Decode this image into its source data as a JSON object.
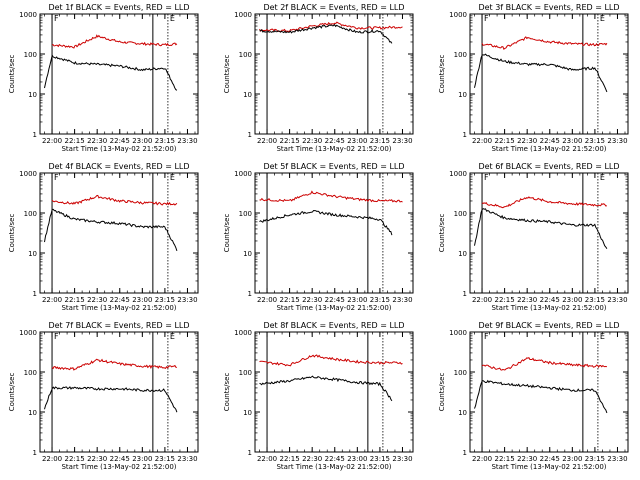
{
  "chart_data": [
    {
      "type": "line",
      "title": "Det 1f BLACK = Events, RED = LLD",
      "xlabel": "Start Time (13-May-02 21:52:00)",
      "ylabel": "Counts/sec",
      "xticks": [
        "22:00",
        "22:15",
        "22:30",
        "22:45",
        "23:00",
        "23:15",
        "23:30"
      ],
      "yticks": [
        "1",
        "10",
        "100",
        "1000"
      ],
      "ylim": [
        1,
        1000
      ],
      "yscale": "log",
      "markers": [
        {
          "label": "F",
          "x": "22:00"
        },
        {
          "label": "",
          "x": "23:07"
        },
        {
          "label": "E",
          "x": "23:17"
        }
      ],
      "series": [
        {
          "color": "#cc0000",
          "x": [
            "22:00",
            "22:15",
            "22:30",
            "22:45",
            "23:00",
            "23:15",
            "23:23"
          ],
          "values": [
            170,
            150,
            280,
            200,
            180,
            170,
            180
          ]
        },
        {
          "color": "#000000",
          "x": [
            "21:55",
            "22:00",
            "22:15",
            "22:30",
            "22:45",
            "23:00",
            "23:15",
            "23:23"
          ],
          "values": [
            15,
            90,
            60,
            55,
            50,
            40,
            45,
            12
          ]
        }
      ]
    },
    {
      "type": "line",
      "title": "Det 2f BLACK = Events, RED = LLD",
      "xlabel": "Start Time (13-May-02 21:52:00)",
      "ylabel": "Counts/sec",
      "xticks": [
        "22:00",
        "22:15",
        "22:30",
        "22:45",
        "23:00",
        "23:15",
        "23:30"
      ],
      "yticks": [
        "1",
        "10",
        "100",
        "1000"
      ],
      "ylim": [
        1,
        1000
      ],
      "yscale": "log",
      "markers": [
        {
          "label": "",
          "x": "22:00"
        },
        {
          "label": "",
          "x": "23:07"
        },
        {
          "label": "",
          "x": "23:17"
        }
      ],
      "series": [
        {
          "color": "#cc0000",
          "x": [
            "21:55",
            "22:15",
            "22:30",
            "22:45",
            "23:00",
            "23:15",
            "23:30"
          ],
          "values": [
            400,
            380,
            500,
            600,
            450,
            450,
            480
          ]
        },
        {
          "color": "#000000",
          "x": [
            "21:55",
            "22:15",
            "22:30",
            "22:45",
            "23:00",
            "23:15",
            "23:23"
          ],
          "values": [
            380,
            350,
            450,
            520,
            350,
            380,
            180
          ]
        }
      ]
    },
    {
      "type": "line",
      "title": "Det 3f BLACK = Events, RED = LLD",
      "xlabel": "Start Time (13-May-02 21:52:00)",
      "ylabel": "Counts/sec",
      "xticks": [
        "22:00",
        "22:15",
        "22:30",
        "22:45",
        "23:00",
        "23:15",
        "23:30"
      ],
      "yticks": [
        "1",
        "10",
        "100",
        "1000"
      ],
      "ylim": [
        1,
        1000
      ],
      "yscale": "log",
      "markers": [
        {
          "label": "F",
          "x": "22:00"
        },
        {
          "label": "",
          "x": "23:07"
        },
        {
          "label": "E",
          "x": "23:17"
        }
      ],
      "series": [
        {
          "color": "#cc0000",
          "x": [
            "22:00",
            "22:15",
            "22:30",
            "22:45",
            "23:00",
            "23:15",
            "23:23"
          ],
          "values": [
            180,
            140,
            260,
            200,
            180,
            170,
            180
          ]
        },
        {
          "color": "#000000",
          "x": [
            "21:55",
            "22:00",
            "22:15",
            "22:30",
            "22:45",
            "23:00",
            "23:15",
            "23:23"
          ],
          "values": [
            15,
            100,
            65,
            55,
            55,
            40,
            45,
            12
          ]
        }
      ]
    },
    {
      "type": "line",
      "title": "Det 4f BLACK = Events, RED = LLD",
      "xlabel": "Start Time (13-May-02 21:52:00)",
      "ylabel": "Counts/sec",
      "xticks": [
        "22:00",
        "22:15",
        "22:30",
        "22:45",
        "23:00",
        "23:15",
        "23:30"
      ],
      "yticks": [
        "1",
        "10",
        "100",
        "1000"
      ],
      "ylim": [
        1,
        1000
      ],
      "yscale": "log",
      "markers": [
        {
          "label": "F",
          "x": "22:00"
        },
        {
          "label": "",
          "x": "23:07"
        },
        {
          "label": "E",
          "x": "23:17"
        }
      ],
      "series": [
        {
          "color": "#cc0000",
          "x": [
            "22:00",
            "22:15",
            "22:30",
            "22:45",
            "23:00",
            "23:15",
            "23:23"
          ],
          "values": [
            200,
            170,
            260,
            200,
            180,
            170,
            170
          ]
        },
        {
          "color": "#000000",
          "x": [
            "21:55",
            "22:00",
            "22:15",
            "22:30",
            "22:45",
            "23:00",
            "23:15",
            "23:23"
          ],
          "values": [
            20,
            120,
            70,
            60,
            55,
            45,
            45,
            12
          ]
        }
      ]
    },
    {
      "type": "line",
      "title": "Det 5f BLACK = Events, RED = LLD",
      "xlabel": "Start Time (13-May-02 21:52:00)",
      "ylabel": "Counts/sec",
      "xticks": [
        "22:00",
        "22:15",
        "22:30",
        "22:45",
        "23:00",
        "23:15",
        "23:30"
      ],
      "yticks": [
        "1",
        "10",
        "100",
        "1000"
      ],
      "ylim": [
        1,
        1000
      ],
      "yscale": "log",
      "markers": [
        {
          "label": "",
          "x": "22:00"
        },
        {
          "label": "",
          "x": "23:07"
        },
        {
          "label": "",
          "x": "23:17"
        }
      ],
      "series": [
        {
          "color": "#cc0000",
          "x": [
            "21:55",
            "22:15",
            "22:30",
            "22:45",
            "23:00",
            "23:15",
            "23:30"
          ],
          "values": [
            220,
            200,
            330,
            260,
            220,
            200,
            200
          ]
        },
        {
          "color": "#000000",
          "x": [
            "21:55",
            "22:15",
            "22:30",
            "22:45",
            "23:00",
            "23:15",
            "23:23"
          ],
          "values": [
            60,
            90,
            110,
            90,
            80,
            70,
            30
          ]
        }
      ]
    },
    {
      "type": "line",
      "title": "Det 6f BLACK = Events, RED = LLD",
      "xlabel": "Start Time (13-May-02 21:52:00)",
      "ylabel": "Counts/sec",
      "xticks": [
        "22:00",
        "22:15",
        "22:30",
        "22:45",
        "23:00",
        "23:15",
        "23:30"
      ],
      "yticks": [
        "1",
        "10",
        "100",
        "1000"
      ],
      "ylim": [
        1,
        1000
      ],
      "yscale": "log",
      "markers": [
        {
          "label": "F",
          "x": "22:00"
        },
        {
          "label": "",
          "x": "23:07"
        },
        {
          "label": "E",
          "x": "23:17"
        }
      ],
      "series": [
        {
          "color": "#cc0000",
          "x": [
            "22:00",
            "22:15",
            "22:30",
            "22:45",
            "23:00",
            "23:15",
            "23:23"
          ],
          "values": [
            180,
            140,
            250,
            190,
            170,
            160,
            160
          ]
        },
        {
          "color": "#000000",
          "x": [
            "21:55",
            "22:00",
            "22:15",
            "22:30",
            "22:45",
            "23:00",
            "23:15",
            "23:23"
          ],
          "values": [
            15,
            130,
            75,
            65,
            60,
            50,
            50,
            12
          ]
        }
      ]
    },
    {
      "type": "line",
      "title": "Det 7f BLACK = Events, RED = LLD",
      "xlabel": "Start Time (13-May-02 21:52:00)",
      "ylabel": "Counts/sec",
      "xticks": [
        "22:00",
        "22:15",
        "22:30",
        "22:45",
        "23:00",
        "23:15",
        "23:30"
      ],
      "yticks": [
        "1",
        "10",
        "100",
        "1000"
      ],
      "ylim": [
        1,
        1000
      ],
      "yscale": "log",
      "markers": [
        {
          "label": "F",
          "x": "22:00"
        },
        {
          "label": "",
          "x": "23:07"
        },
        {
          "label": "E",
          "x": "23:17"
        }
      ],
      "series": [
        {
          "color": "#cc0000",
          "x": [
            "22:00",
            "22:15",
            "22:30",
            "22:45",
            "23:00",
            "23:15",
            "23:23"
          ],
          "values": [
            130,
            120,
            200,
            160,
            140,
            130,
            140
          ]
        },
        {
          "color": "#000000",
          "x": [
            "21:55",
            "22:00",
            "22:15",
            "22:30",
            "22:45",
            "23:00",
            "23:15",
            "23:23"
          ],
          "values": [
            12,
            40,
            40,
            38,
            38,
            35,
            35,
            10
          ]
        }
      ]
    },
    {
      "type": "line",
      "title": "Det 8f BLACK = Events, RED = LLD",
      "xlabel": "Start Time (13-May-02 21:52:00)",
      "ylabel": "Counts/sec",
      "xticks": [
        "22:00",
        "22:15",
        "22:30",
        "22:45",
        "23:00",
        "23:15",
        "23:30"
      ],
      "yticks": [
        "1",
        "10",
        "100",
        "1000"
      ],
      "ylim": [
        1,
        1000
      ],
      "yscale": "log",
      "markers": [
        {
          "label": "",
          "x": "22:00"
        },
        {
          "label": "",
          "x": "23:07"
        },
        {
          "label": "",
          "x": "23:17"
        }
      ],
      "series": [
        {
          "color": "#cc0000",
          "x": [
            "21:55",
            "22:15",
            "22:30",
            "22:45",
            "23:00",
            "23:15",
            "23:30"
          ],
          "values": [
            180,
            150,
            260,
            210,
            180,
            170,
            170
          ]
        },
        {
          "color": "#000000",
          "x": [
            "21:55",
            "22:15",
            "22:30",
            "22:45",
            "23:00",
            "23:15",
            "23:23"
          ],
          "values": [
            50,
            60,
            75,
            65,
            55,
            50,
            20
          ]
        }
      ]
    },
    {
      "type": "line",
      "title": "Det 9f BLACK = Events, RED = LLD",
      "xlabel": "Start Time (13-May-02 21:52:00)",
      "ylabel": "Counts/sec",
      "xticks": [
        "22:00",
        "22:15",
        "22:30",
        "22:45",
        "23:00",
        "23:15",
        "23:30"
      ],
      "yticks": [
        "1",
        "10",
        "100",
        "1000"
      ],
      "ylim": [
        1,
        1000
      ],
      "yscale": "log",
      "markers": [
        {
          "label": "F",
          "x": "22:00"
        },
        {
          "label": "",
          "x": "23:07"
        },
        {
          "label": "E",
          "x": "23:17"
        }
      ],
      "series": [
        {
          "color": "#cc0000",
          "x": [
            "22:00",
            "22:15",
            "22:30",
            "22:45",
            "23:00",
            "23:15",
            "23:23"
          ],
          "values": [
            150,
            110,
            220,
            170,
            150,
            140,
            140
          ]
        },
        {
          "color": "#000000",
          "x": [
            "21:55",
            "22:00",
            "22:15",
            "22:30",
            "22:45",
            "23:00",
            "23:15",
            "23:23"
          ],
          "values": [
            12,
            60,
            50,
            45,
            40,
            35,
            35,
            10
          ]
        }
      ]
    }
  ]
}
